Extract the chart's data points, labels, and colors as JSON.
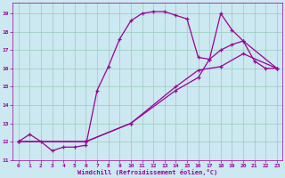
{
  "xlabel": "Windchill (Refroidissement éolien,°C)",
  "bg_color": "#cce8f0",
  "grid_color": "#99ccbb",
  "line_color": "#990099",
  "xlim": [
    -0.5,
    23.5
  ],
  "ylim": [
    11,
    19.6
  ],
  "yticks": [
    11,
    12,
    13,
    14,
    15,
    16,
    17,
    18,
    19
  ],
  "xticks": [
    0,
    1,
    2,
    3,
    4,
    5,
    6,
    7,
    8,
    9,
    10,
    11,
    12,
    13,
    14,
    15,
    16,
    17,
    18,
    19,
    20,
    21,
    22,
    23
  ],
  "line1": {
    "x": [
      0,
      1,
      2,
      3,
      4,
      5,
      6,
      7,
      8,
      9,
      10,
      11,
      12,
      13,
      14,
      15,
      16,
      17,
      18,
      19,
      20,
      21,
      22,
      23
    ],
    "y": [
      12.0,
      12.4,
      12.0,
      11.5,
      11.7,
      11.7,
      11.8,
      14.8,
      16.1,
      17.6,
      18.6,
      19.0,
      19.1,
      19.1,
      18.9,
      18.7,
      16.6,
      16.5,
      19.0,
      18.1,
      17.5,
      16.4,
      16.0,
      16.0
    ]
  },
  "line2": {
    "x": [
      0,
      6,
      10,
      14,
      16,
      17,
      18,
      19,
      20,
      23
    ],
    "y": [
      12.0,
      12.0,
      13.0,
      14.8,
      15.5,
      16.5,
      17.0,
      17.3,
      17.5,
      16.0
    ]
  },
  "line3": {
    "x": [
      0,
      6,
      10,
      14,
      16,
      18,
      20,
      23
    ],
    "y": [
      12.0,
      12.0,
      13.0,
      15.0,
      15.9,
      16.1,
      16.8,
      16.0
    ]
  }
}
